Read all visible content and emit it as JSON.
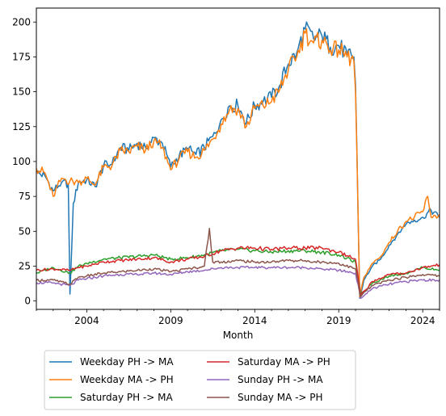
{
  "chart_data": {
    "type": "line",
    "title": "",
    "xlabel": "Month",
    "ylabel": "",
    "xlim": [
      2001.0,
      2025.0
    ],
    "ylim": [
      -6,
      210
    ],
    "x_ticks": [
      2004,
      2009,
      2014,
      2019,
      2024
    ],
    "y_ticks": [
      0,
      25,
      50,
      75,
      100,
      125,
      150,
      175,
      200
    ],
    "grid": false,
    "legend": "below",
    "series": [
      {
        "name": "Weekday PH -> MA",
        "color": "#1f77b4",
        "points": [
          [
            2001.0,
            92
          ],
          [
            2001.5,
            90
          ],
          [
            2002.0,
            79
          ],
          [
            2002.5,
            85
          ],
          [
            2002.9,
            84
          ],
          [
            2003.0,
            5
          ],
          [
            2003.2,
            70
          ],
          [
            2003.5,
            85
          ],
          [
            2004.0,
            87
          ],
          [
            2004.5,
            82
          ],
          [
            2005.0,
            97
          ],
          [
            2005.5,
            98
          ],
          [
            2006.0,
            110
          ],
          [
            2006.5,
            108
          ],
          [
            2007.0,
            113
          ],
          [
            2007.5,
            110
          ],
          [
            2008.0,
            117
          ],
          [
            2008.5,
            113
          ],
          [
            2009.0,
            96
          ],
          [
            2009.5,
            104
          ],
          [
            2010.0,
            109
          ],
          [
            2010.5,
            105
          ],
          [
            2011.0,
            110
          ],
          [
            2011.5,
            118
          ],
          [
            2012.0,
            130
          ],
          [
            2012.5,
            140
          ],
          [
            2013.0,
            140
          ],
          [
            2013.5,
            128
          ],
          [
            2014.0,
            140
          ],
          [
            2014.5,
            143
          ],
          [
            2015.0,
            146
          ],
          [
            2015.5,
            155
          ],
          [
            2016.0,
            170
          ],
          [
            2016.5,
            178
          ],
          [
            2017.0,
            195
          ],
          [
            2017.5,
            188
          ],
          [
            2018.0,
            190
          ],
          [
            2018.5,
            182
          ],
          [
            2019.0,
            183
          ],
          [
            2019.5,
            177
          ],
          [
            2019.9,
            175
          ],
          [
            2020.0,
            155
          ],
          [
            2020.25,
            2
          ],
          [
            2020.5,
            15
          ],
          [
            2021.0,
            25
          ],
          [
            2021.5,
            30
          ],
          [
            2022.0,
            40
          ],
          [
            2022.5,
            48
          ],
          [
            2023.0,
            55
          ],
          [
            2023.5,
            58
          ],
          [
            2024.0,
            60
          ],
          [
            2024.5,
            65
          ],
          [
            2025.0,
            60
          ]
        ]
      },
      {
        "name": "Weekday MA -> PH",
        "color": "#ff7f0e",
        "points": [
          [
            2001.0,
            95
          ],
          [
            2001.5,
            92
          ],
          [
            2002.0,
            75
          ],
          [
            2002.5,
            88
          ],
          [
            2003.0,
            86
          ],
          [
            2003.5,
            85
          ],
          [
            2004.0,
            88
          ],
          [
            2004.5,
            83
          ],
          [
            2005.0,
            96
          ],
          [
            2005.5,
            97
          ],
          [
            2006.0,
            108
          ],
          [
            2006.5,
            107
          ],
          [
            2007.0,
            111
          ],
          [
            2007.5,
            108
          ],
          [
            2008.0,
            115
          ],
          [
            2008.5,
            110
          ],
          [
            2009.0,
            94
          ],
          [
            2009.5,
            102
          ],
          [
            2010.0,
            107
          ],
          [
            2010.5,
            103
          ],
          [
            2011.0,
            108
          ],
          [
            2011.5,
            116
          ],
          [
            2012.0,
            127
          ],
          [
            2012.5,
            137
          ],
          [
            2013.0,
            138
          ],
          [
            2013.5,
            125
          ],
          [
            2014.0,
            138
          ],
          [
            2014.5,
            140
          ],
          [
            2015.0,
            143
          ],
          [
            2015.5,
            152
          ],
          [
            2016.0,
            166
          ],
          [
            2016.5,
            175
          ],
          [
            2017.0,
            192
          ],
          [
            2017.5,
            185
          ],
          [
            2018.0,
            187
          ],
          [
            2018.5,
            180
          ],
          [
            2019.0,
            180
          ],
          [
            2019.5,
            175
          ],
          [
            2019.9,
            172
          ],
          [
            2020.0,
            150
          ],
          [
            2020.25,
            3
          ],
          [
            2020.5,
            17
          ],
          [
            2021.0,
            27
          ],
          [
            2021.5,
            32
          ],
          [
            2022.0,
            42
          ],
          [
            2022.5,
            50
          ],
          [
            2023.0,
            57
          ],
          [
            2023.5,
            60
          ],
          [
            2024.0,
            64
          ],
          [
            2024.3,
            75
          ],
          [
            2024.5,
            60
          ],
          [
            2025.0,
            62
          ]
        ]
      },
      {
        "name": "Saturday PH -> MA",
        "color": "#2ca02c",
        "points": [
          [
            2001.0,
            20
          ],
          [
            2002.0,
            24
          ],
          [
            2003.0,
            20
          ],
          [
            2003.5,
            25
          ],
          [
            2004.0,
            27
          ],
          [
            2005.0,
            30
          ],
          [
            2006.0,
            31
          ],
          [
            2007.0,
            32
          ],
          [
            2008.0,
            33
          ],
          [
            2009.0,
            30
          ],
          [
            2010.0,
            31
          ],
          [
            2011.0,
            33
          ],
          [
            2012.0,
            36
          ],
          [
            2013.0,
            37
          ],
          [
            2014.0,
            36
          ],
          [
            2015.0,
            35
          ],
          [
            2016.0,
            36
          ],
          [
            2017.0,
            36
          ],
          [
            2018.0,
            35
          ],
          [
            2019.0,
            33
          ],
          [
            2020.0,
            28
          ],
          [
            2020.3,
            5
          ],
          [
            2020.6,
            8
          ],
          [
            2021.0,
            13
          ],
          [
            2022.0,
            18
          ],
          [
            2023.0,
            20
          ],
          [
            2024.0,
            24
          ],
          [
            2025.0,
            22
          ]
        ]
      },
      {
        "name": "Saturday MA -> PH",
        "color": "#d62728",
        "points": [
          [
            2001.0,
            22
          ],
          [
            2002.0,
            23
          ],
          [
            2003.0,
            22
          ],
          [
            2003.5,
            24
          ],
          [
            2004.0,
            25
          ],
          [
            2005.0,
            28
          ],
          [
            2006.0,
            29
          ],
          [
            2007.0,
            30
          ],
          [
            2008.0,
            31
          ],
          [
            2009.0,
            28
          ],
          [
            2010.0,
            30
          ],
          [
            2011.0,
            32
          ],
          [
            2012.0,
            36
          ],
          [
            2013.0,
            38
          ],
          [
            2014.0,
            38
          ],
          [
            2015.0,
            37
          ],
          [
            2016.0,
            38
          ],
          [
            2017.0,
            38
          ],
          [
            2018.0,
            38
          ],
          [
            2019.0,
            35
          ],
          [
            2020.0,
            30
          ],
          [
            2020.3,
            4
          ],
          [
            2020.6,
            8
          ],
          [
            2021.0,
            14
          ],
          [
            2022.0,
            19
          ],
          [
            2023.0,
            20
          ],
          [
            2024.0,
            24
          ],
          [
            2025.0,
            26
          ]
        ]
      },
      {
        "name": "Sunday PH -> MA",
        "color": "#9467bd",
        "points": [
          [
            2001.0,
            13
          ],
          [
            2002.0,
            13
          ],
          [
            2003.0,
            11
          ],
          [
            2003.5,
            15
          ],
          [
            2004.0,
            16
          ],
          [
            2005.0,
            18
          ],
          [
            2006.0,
            19
          ],
          [
            2007.0,
            19
          ],
          [
            2008.0,
            20
          ],
          [
            2009.0,
            19
          ],
          [
            2010.0,
            21
          ],
          [
            2011.0,
            22
          ],
          [
            2012.0,
            24
          ],
          [
            2013.0,
            24
          ],
          [
            2014.0,
            24
          ],
          [
            2015.0,
            24
          ],
          [
            2016.0,
            24
          ],
          [
            2017.0,
            24
          ],
          [
            2018.0,
            23
          ],
          [
            2019.0,
            22
          ],
          [
            2020.0,
            20
          ],
          [
            2020.3,
            2
          ],
          [
            2020.6,
            5
          ],
          [
            2021.0,
            9
          ],
          [
            2022.0,
            12
          ],
          [
            2023.0,
            14
          ],
          [
            2024.0,
            15
          ],
          [
            2025.0,
            15
          ]
        ]
      },
      {
        "name": "Sunday MA -> PH",
        "color": "#8c564b",
        "points": [
          [
            2001.0,
            15
          ],
          [
            2002.0,
            15
          ],
          [
            2003.0,
            12
          ],
          [
            2003.5,
            17
          ],
          [
            2004.0,
            18
          ],
          [
            2005.0,
            20
          ],
          [
            2006.0,
            21
          ],
          [
            2007.0,
            22
          ],
          [
            2008.0,
            23
          ],
          [
            2009.0,
            21
          ],
          [
            2010.0,
            23
          ],
          [
            2011.0,
            25
          ],
          [
            2011.3,
            52
          ],
          [
            2011.5,
            28
          ],
          [
            2012.0,
            28
          ],
          [
            2013.0,
            29
          ],
          [
            2014.0,
            28
          ],
          [
            2015.0,
            28
          ],
          [
            2016.0,
            29
          ],
          [
            2017.0,
            29
          ],
          [
            2018.0,
            28
          ],
          [
            2019.0,
            27
          ],
          [
            2020.0,
            23
          ],
          [
            2020.3,
            3
          ],
          [
            2020.6,
            7
          ],
          [
            2021.0,
            11
          ],
          [
            2022.0,
            15
          ],
          [
            2023.0,
            17
          ],
          [
            2024.0,
            19
          ],
          [
            2025.0,
            18
          ]
        ]
      }
    ]
  }
}
